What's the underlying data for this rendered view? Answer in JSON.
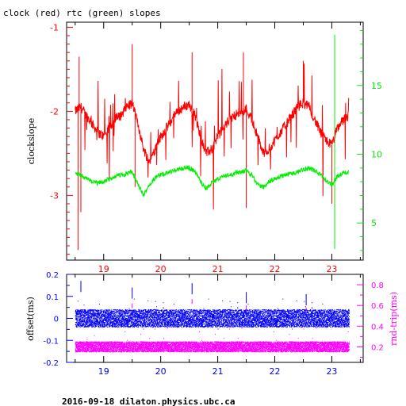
{
  "title": "clock (red) rtc (green) slopes",
  "footer": "2016-09-18  dilaton.physics.ubc.ca",
  "colors": {
    "clock": "#ff0000",
    "rtc": "#00ee00",
    "offset": "#0000ff",
    "roundtrip": "#ff00ff",
    "frame": "#000000"
  },
  "chart_data": [
    {
      "type": "line",
      "ylabel": "clockslope",
      "xlim": [
        18.35,
        23.55
      ],
      "x_ticks": [
        "19",
        "20",
        "21",
        "22",
        "23"
      ],
      "x_tick_color": "#ff0000",
      "ylim_left": [
        -3.77,
        -0.94
      ],
      "y_ticks_left": [
        "-1",
        "-2",
        "-3"
      ],
      "left_tick_color": "#ff0000",
      "ylim_right": [
        2.3,
        19.6
      ],
      "y_ticks_right": [
        "5",
        "10",
        "15"
      ],
      "right_tick_color": "#00ee00",
      "series": [
        {
          "name": "clock",
          "color": "#ff0000",
          "x": [
            18.5,
            18.6,
            18.7,
            18.8,
            18.9,
            19.0,
            19.1,
            19.2,
            19.3,
            19.4,
            19.5,
            19.6,
            19.7,
            19.8,
            19.9,
            20.0,
            20.1,
            20.2,
            20.3,
            20.4,
            20.5,
            20.6,
            20.7,
            20.8,
            20.9,
            21.0,
            21.1,
            21.2,
            21.3,
            21.4,
            21.5,
            21.6,
            21.7,
            21.8,
            21.9,
            22.0,
            22.1,
            22.2,
            22.3,
            22.4,
            22.5,
            22.6,
            22.7,
            22.8,
            22.9,
            23.0,
            23.1,
            23.2,
            23.3
          ],
          "y": [
            -2.0,
            -1.95,
            -2.05,
            -2.15,
            -2.25,
            -2.3,
            -2.2,
            -2.1,
            -2.05,
            -1.95,
            -1.9,
            -2.15,
            -2.45,
            -2.6,
            -2.45,
            -2.3,
            -2.2,
            -2.1,
            -2.0,
            -1.95,
            -1.92,
            -2.05,
            -2.3,
            -2.5,
            -2.45,
            -2.3,
            -2.2,
            -2.1,
            -2.05,
            -2.0,
            -1.97,
            -2.1,
            -2.3,
            -2.5,
            -2.45,
            -2.35,
            -2.25,
            -2.15,
            -2.05,
            -1.95,
            -1.9,
            -1.95,
            -2.1,
            -2.25,
            -2.35,
            -2.4,
            -2.2,
            -2.1,
            -2.05
          ]
        },
        {
          "name": "rtc",
          "color": "#00ee00",
          "axis": "right",
          "x": [
            18.5,
            18.6,
            18.7,
            18.8,
            18.9,
            19.0,
            19.1,
            19.2,
            19.3,
            19.4,
            19.5,
            19.6,
            19.7,
            19.8,
            19.9,
            20.0,
            20.1,
            20.2,
            20.3,
            20.4,
            20.5,
            20.6,
            20.7,
            20.8,
            20.9,
            21.0,
            21.1,
            21.2,
            21.3,
            21.4,
            21.5,
            21.6,
            21.7,
            21.8,
            21.9,
            22.0,
            22.1,
            22.2,
            22.3,
            22.4,
            22.5,
            22.6,
            22.7,
            22.8,
            22.9,
            23.0,
            23.1,
            23.2,
            23.3
          ],
          "y": [
            8.6,
            8.5,
            8.2,
            8.0,
            7.9,
            8.0,
            8.2,
            8.4,
            8.5,
            8.6,
            8.7,
            7.8,
            7.0,
            7.8,
            8.3,
            8.5,
            8.6,
            8.8,
            8.9,
            9.0,
            9.0,
            8.8,
            8.0,
            7.5,
            7.9,
            8.2,
            8.4,
            8.5,
            8.6,
            8.7,
            8.8,
            8.5,
            7.8,
            7.6,
            8.0,
            8.2,
            8.4,
            8.5,
            8.6,
            8.7,
            8.9,
            9.0,
            8.8,
            8.5,
            8.1,
            7.8,
            8.4,
            8.6,
            8.7
          ]
        }
      ]
    },
    {
      "type": "scatter",
      "ylabel": "offset(ms)",
      "ylabel_right": "rnd-trip(ms)",
      "xlim": [
        18.35,
        23.55
      ],
      "x_ticks": [
        "19",
        "20",
        "21",
        "22",
        "23"
      ],
      "x_tick_color": "#0000ff",
      "ylim_left": [
        -0.2,
        0.2
      ],
      "y_ticks_left": [
        "0.2",
        "0.1",
        "0",
        "-0.1",
        "-0.2"
      ],
      "left_tick_color": "#0000ff",
      "ylim_right": [
        0.05,
        0.9
      ],
      "y_ticks_right": [
        "0.2",
        "0.4",
        "0.6",
        "0.8"
      ],
      "right_tick_color": "#ff00ff",
      "series": [
        {
          "name": "offset",
          "color": "#0000ff",
          "x": [
            18.5,
            19.0,
            19.5,
            20.0,
            20.5,
            21.0,
            21.5,
            22.0,
            22.5,
            23.0,
            23.3
          ],
          "y": [
            0.0,
            0.0,
            0.0,
            0.0,
            0.0,
            0.0,
            0.0,
            0.0,
            0.0,
            0.0,
            0.0
          ],
          "y_spread": 0.04
        },
        {
          "name": "roundtrip",
          "color": "#ff00ff",
          "axis": "right",
          "x": [
            18.5,
            19.0,
            19.5,
            20.0,
            20.5,
            21.0,
            21.5,
            22.0,
            22.5,
            23.0,
            23.3
          ],
          "y": [
            0.2,
            0.2,
            0.2,
            0.2,
            0.2,
            0.2,
            0.2,
            0.2,
            0.2,
            0.2,
            0.2
          ],
          "y_spread": 0.05
        }
      ]
    }
  ]
}
